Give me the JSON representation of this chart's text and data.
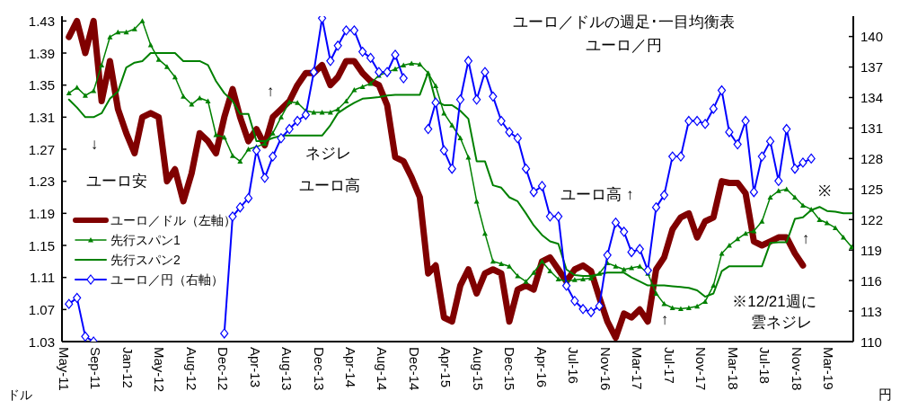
{
  "chart_data": {
    "type": "line",
    "title": "ユーロ／ドルの週足･一目均衡表",
    "subtitle": "ユーロ／円",
    "ylabel": "ドル",
    "y2label": "円",
    "x": [
      "2011-06",
      "2011-07",
      "2011-08",
      "2011-09",
      "2011-10",
      "2011-11",
      "2011-12",
      "2012-01",
      "2012-02",
      "2012-03",
      "2012-04",
      "2012-05",
      "2012-06",
      "2012-07",
      "2012-08",
      "2012-09",
      "2012-10",
      "2012-11",
      "2012-12",
      "2013-01",
      "2013-02",
      "2013-03",
      "2013-04",
      "2013-05",
      "2013-06",
      "2013-07",
      "2013-08",
      "2013-09",
      "2013-10",
      "2013-11",
      "2013-12",
      "2014-01",
      "2014-02",
      "2014-03",
      "2014-04",
      "2014-05",
      "2014-06",
      "2014-07",
      "2014-08",
      "2014-09",
      "2014-10",
      "2014-11",
      "2014-12",
      "2015-01",
      "2015-02",
      "2015-03",
      "2015-04",
      "2015-05",
      "2015-06",
      "2015-07",
      "2015-08",
      "2015-09",
      "2015-10",
      "2015-11",
      "2015-12",
      "2016-01",
      "2016-02",
      "2016-03",
      "2016-04",
      "2016-05",
      "2016-06",
      "2016-07",
      "2016-08",
      "2016-09",
      "2016-10",
      "2016-11",
      "2016-12",
      "2017-01",
      "2017-02",
      "2017-03",
      "2017-04",
      "2017-05",
      "2017-06",
      "2017-07",
      "2017-08",
      "2017-09",
      "2017-10",
      "2017-11",
      "2017-12",
      "2018-01",
      "2018-02",
      "2018-03",
      "2018-04",
      "2018-05",
      "2018-06",
      "2018-07",
      "2018-08",
      "2018-09",
      "2018-10",
      "2018-11",
      "2018-12",
      "2019-01",
      "2019-02",
      "2019-03",
      "2019-04",
      "2019-05",
      "2019-06"
    ],
    "series": [
      {
        "name": "ユーロ／ドル（左軸）",
        "color": "#800000",
        "marker": "none",
        "values": [
          1.41,
          1.43,
          1.39,
          1.43,
          1.33,
          1.38,
          1.32,
          1.29,
          1.265,
          1.31,
          1.315,
          1.31,
          1.23,
          1.245,
          1.205,
          1.24,
          1.29,
          1.28,
          1.265,
          1.31,
          1.345,
          1.31,
          1.28,
          1.295,
          1.275,
          1.31,
          1.32,
          1.33,
          1.35,
          1.365,
          1.365,
          1.375,
          1.35,
          1.36,
          1.38,
          1.38,
          1.365,
          1.355,
          1.35,
          1.325,
          1.26,
          1.255,
          1.235,
          1.21,
          1.115,
          1.125,
          1.06,
          1.055,
          1.1,
          1.12,
          1.09,
          1.115,
          1.12,
          1.115,
          1.055,
          1.095,
          1.1,
          1.095,
          1.13,
          1.135,
          1.12,
          1.105,
          1.12,
          1.125,
          1.118,
          1.085,
          1.055,
          1.035,
          1.065,
          1.06,
          1.07,
          1.055,
          1.12,
          1.135,
          1.17,
          1.185,
          1.19,
          1.16,
          1.18,
          1.185,
          1.23,
          1.228,
          1.228,
          1.215,
          1.155,
          1.15,
          1.155,
          1.16,
          1.16,
          1.14,
          1.125,
          null,
          null,
          null,
          null,
          null,
          null
        ]
      },
      {
        "name": "先行スパン1",
        "color": "#008000",
        "marker": "triangle",
        "values": [
          1.34,
          1.347,
          1.337,
          1.343,
          1.375,
          1.41,
          1.416,
          1.416,
          1.42,
          1.43,
          1.4,
          1.382,
          1.373,
          1.36,
          1.336,
          1.326,
          1.334,
          1.33,
          1.288,
          1.285,
          1.262,
          1.255,
          1.27,
          1.273,
          1.277,
          1.29,
          1.31,
          1.329,
          1.328,
          1.318,
          1.316,
          1.316,
          1.316,
          1.32,
          1.33,
          1.344,
          1.348,
          1.352,
          1.362,
          1.366,
          1.37,
          1.375,
          1.377,
          1.376,
          1.365,
          1.349,
          1.315,
          1.3,
          1.284,
          1.26,
          1.205,
          1.165,
          1.13,
          1.127,
          1.124,
          1.112,
          1.105,
          1.116,
          1.13,
          1.118,
          1.108,
          1.105,
          1.107,
          1.108,
          1.109,
          1.115,
          1.128,
          1.124,
          1.12,
          1.122,
          1.124,
          1.115,
          1.09,
          1.077,
          1.072,
          1.071,
          1.072,
          1.074,
          1.08,
          1.1,
          1.14,
          1.15,
          1.158,
          1.165,
          1.168,
          1.18,
          1.21,
          1.218,
          1.22,
          1.21,
          1.2,
          1.195,
          1.182,
          1.178,
          1.172,
          1.16,
          1.148
        ]
      },
      {
        "name": "先行スパン2",
        "color": "#008000",
        "marker": "none",
        "values": [
          1.332,
          1.322,
          1.31,
          1.31,
          1.315,
          1.333,
          1.342,
          1.372,
          1.378,
          1.38,
          1.39,
          1.39,
          1.39,
          1.39,
          1.38,
          1.38,
          1.38,
          1.375,
          1.355,
          1.34,
          1.33,
          1.314,
          1.314,
          1.28,
          1.28,
          1.284,
          1.287,
          1.287,
          1.287,
          1.287,
          1.287,
          1.287,
          1.3,
          1.315,
          1.322,
          1.328,
          1.333,
          1.334,
          1.335,
          1.337,
          1.338,
          1.338,
          1.338,
          1.338,
          1.366,
          1.33,
          1.325,
          1.325,
          1.318,
          1.308,
          1.255,
          1.255,
          1.225,
          1.222,
          1.21,
          1.205,
          1.19,
          1.175,
          1.163,
          1.155,
          1.152,
          1.12,
          1.113,
          1.112,
          1.112,
          1.114,
          1.116,
          1.116,
          1.116,
          1.11,
          1.105,
          1.1,
          1.1,
          1.1,
          1.099,
          1.098,
          1.097,
          1.094,
          1.086,
          1.09,
          1.118,
          1.124,
          1.124,
          1.124,
          1.124,
          1.124,
          1.153,
          1.154,
          1.154,
          1.183,
          1.185,
          1.194,
          1.198,
          1.193,
          1.192,
          1.19,
          1.19
        ]
      },
      {
        "name": "ユーロ／円（右軸）",
        "color": "#0000ff",
        "marker": "diamond",
        "axis": "y2",
        "values": [
          113.7,
          114.3,
          110.5,
          110.0,
          null,
          null,
          null,
          null,
          null,
          null,
          null,
          null,
          null,
          null,
          null,
          null,
          null,
          null,
          null,
          110.8,
          122.3,
          123.2,
          124.1,
          128.8,
          126.1,
          128.2,
          130.0,
          130.9,
          131.7,
          132.3,
          136.5,
          141.8,
          137.6,
          139.1,
          140.6,
          140.6,
          138.5,
          137.9,
          136.5,
          136.5,
          138.2,
          135.9,
          null,
          null,
          130.9,
          133.5,
          128.8,
          127.0,
          133.8,
          137.6,
          133.8,
          136.5,
          134.1,
          131.7,
          130.6,
          130.0,
          127.0,
          124.7,
          125.3,
          122.3,
          122.3,
          115.5,
          114.0,
          113.2,
          112.9,
          113.5,
          118.5,
          121.7,
          120.8,
          118.8,
          119.1,
          117.0,
          123.2,
          124.4,
          128.2,
          128.2,
          131.7,
          131.7,
          131.4,
          132.9,
          134.7,
          130.6,
          129.4,
          131.7,
          124.7,
          128.2,
          129.7,
          125.8,
          130.9,
          127.0,
          127.6,
          128.0,
          null,
          null,
          null,
          null,
          null
        ]
      }
    ],
    "xlim": [
      "2011-05-06",
      "2019-06-07"
    ],
    "xticks": [
      {
        "value": "2011-05-13",
        "label": "May-11"
      },
      {
        "value": "2011-09-09",
        "label": "Sep-11"
      },
      {
        "value": "2012-01-06",
        "label": "Jan-12"
      },
      {
        "value": "2012-05-04",
        "label": "May-12"
      },
      {
        "value": "2012-08-31",
        "label": "Aug-12"
      },
      {
        "value": "2012-12-28",
        "label": "Dec-12"
      },
      {
        "value": "2013-04-26",
        "label": "Apr-13"
      },
      {
        "value": "2013-08-23",
        "label": "Aug-13"
      },
      {
        "value": "2013-12-20",
        "label": "Dec-13"
      },
      {
        "value": "2014-04-18",
        "label": "Apr-14"
      },
      {
        "value": "2014-08-15",
        "label": "Aug-14"
      },
      {
        "value": "2014-12-12",
        "label": "Dec-14"
      },
      {
        "value": "2015-04-10",
        "label": "Apr-15"
      },
      {
        "value": "2015-08-07",
        "label": "Aug-15"
      },
      {
        "value": "2015-12-04",
        "label": "Dec-15"
      },
      {
        "value": "2016-04-01",
        "label": "Apr-16"
      },
      {
        "value": "2016-07-29",
        "label": "Jul-16"
      },
      {
        "value": "2016-11-25",
        "label": "Nov-16"
      },
      {
        "value": "2017-03-24",
        "label": "Mar-17"
      },
      {
        "value": "2017-07-21",
        "label": "Jul-17"
      },
      {
        "value": "2017-11-17",
        "label": "Nov-17"
      },
      {
        "value": "2018-03-16",
        "label": "Mar-18"
      },
      {
        "value": "2018-07-13",
        "label": "Jul-18"
      },
      {
        "value": "2018-11-09",
        "label": "Nov-18"
      },
      {
        "value": "2019-03-08",
        "label": "Mar-19"
      }
    ],
    "ylim": [
      1.03,
      1.436
    ],
    "yticks": [
      {
        "value": 1.03,
        "label": "1.03"
      },
      {
        "value": 1.07,
        "label": "1.07"
      },
      {
        "value": 1.11,
        "label": "1.11"
      },
      {
        "value": 1.15,
        "label": "1.15"
      },
      {
        "value": 1.19,
        "label": "1.19"
      },
      {
        "value": 1.23,
        "label": "1.23"
      },
      {
        "value": 1.27,
        "label": "1.27"
      },
      {
        "value": 1.31,
        "label": "1.31"
      },
      {
        "value": 1.35,
        "label": "1.35"
      },
      {
        "value": 1.39,
        "label": "1.39"
      },
      {
        "value": 1.43,
        "label": "1.43"
      }
    ],
    "y2lim": [
      110,
      142
    ],
    "y2ticks": [
      110,
      113,
      116,
      119,
      122,
      125,
      128,
      131,
      134,
      137,
      140
    ],
    "legend": "left",
    "annotations": [
      "↓",
      "ユーロ安",
      "↑",
      "ネジレ",
      "ユーロ高",
      "ユーロ高 ↑",
      "※",
      "↑",
      "※12/21週に",
      "雲ネジレ",
      "↑"
    ]
  }
}
